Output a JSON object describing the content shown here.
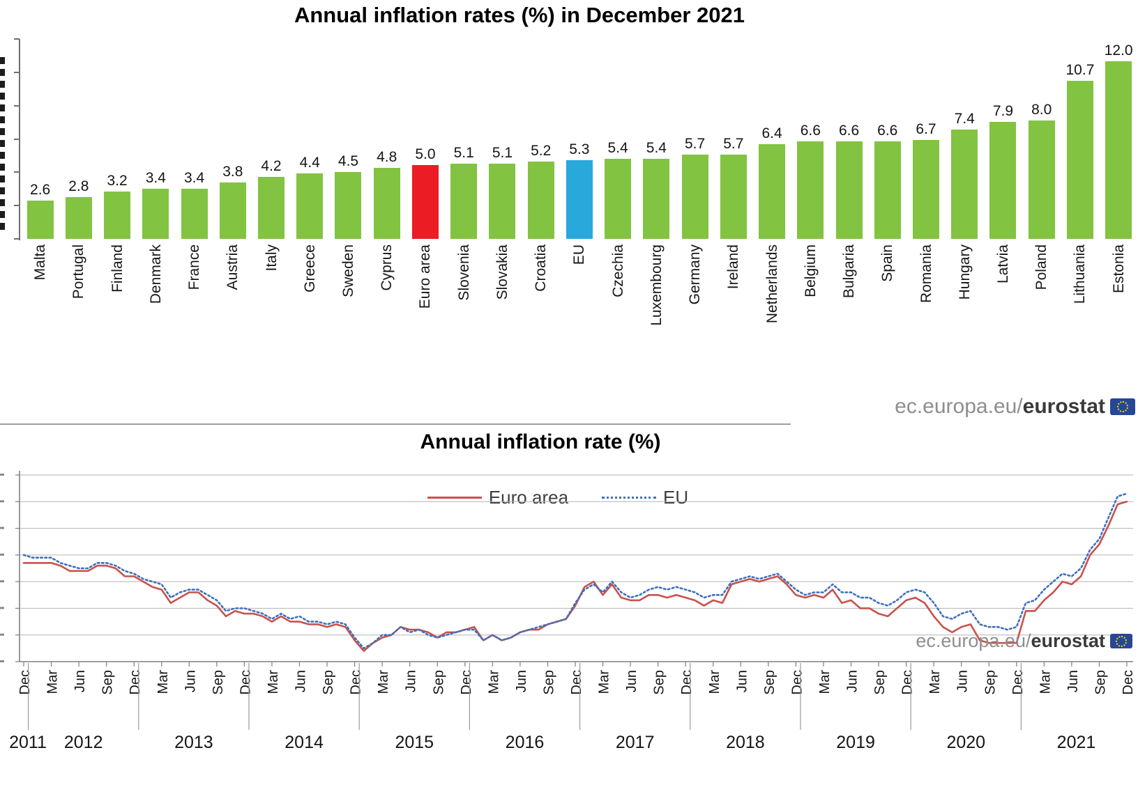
{
  "watermark": {
    "prefix": "ec.europa.eu/",
    "brand": "eurostat",
    "flag": "eu-flag"
  },
  "chart_data": [
    {
      "type": "bar",
      "title": "Annual inflation rates (%) in December 2021",
      "categories": [
        "Malta",
        "Portugal",
        "Finland",
        "Denmark",
        "France",
        "Austria",
        "Italy",
        "Greece",
        "Sweden",
        "Cyprus",
        "Euro area",
        "Slovenia",
        "Slovakia",
        "Croatia",
        "EU",
        "Czechia",
        "Luxembourg",
        "Germany",
        "Ireland",
        "Netherlands",
        "Belgium",
        "Bulgaria",
        "Spain",
        "Romania",
        "Hungary",
        "Latvia",
        "Poland",
        "Lithuania",
        "Estonia"
      ],
      "values": [
        2.6,
        2.8,
        3.2,
        3.4,
        3.4,
        3.8,
        4.2,
        4.4,
        4.5,
        4.8,
        5.0,
        5.1,
        5.1,
        5.2,
        5.3,
        5.4,
        5.4,
        5.7,
        5.7,
        6.4,
        6.6,
        6.6,
        6.6,
        6.7,
        7.4,
        7.9,
        8.0,
        10.7,
        12.0
      ],
      "ylim": [
        0,
        13.5
      ],
      "grid": false,
      "value_labels": "one_decimal",
      "bar_colors": {
        "default": "#82c341",
        "euro_area": "#ec1c24",
        "eu": "#29a8dc"
      },
      "highlight_red": "Euro area",
      "highlight_blue": "EU"
    },
    {
      "type": "line",
      "title": "Annual inflation rate (%)",
      "x_start": "Dec 2011",
      "x_end": "Dec 2021",
      "quarter_label_cycle": [
        "Dec",
        "Mar",
        "Jun",
        "Sep"
      ],
      "years": [
        "2011",
        "2012",
        "2013",
        "2014",
        "2015",
        "2016",
        "2017",
        "2018",
        "2019",
        "2020",
        "2021"
      ],
      "ylim": [
        -1,
        6
      ],
      "grid": true,
      "legend_position": "top-center",
      "series": [
        {
          "name": "Euro area",
          "color": "#c8524b",
          "style": "solid",
          "values": [
            2.7,
            2.7,
            2.7,
            2.7,
            2.6,
            2.4,
            2.4,
            2.4,
            2.6,
            2.6,
            2.5,
            2.2,
            2.2,
            2.0,
            1.8,
            1.7,
            1.2,
            1.4,
            1.6,
            1.6,
            1.3,
            1.1,
            0.7,
            0.9,
            0.8,
            0.8,
            0.7,
            0.5,
            0.7,
            0.5,
            0.5,
            0.4,
            0.4,
            0.3,
            0.4,
            0.3,
            -0.2,
            -0.6,
            -0.3,
            -0.1,
            0.0,
            0.3,
            0.2,
            0.2,
            0.1,
            -0.1,
            0.1,
            0.1,
            0.2,
            0.3,
            -0.2,
            0.0,
            -0.2,
            -0.1,
            0.1,
            0.2,
            0.2,
            0.4,
            0.5,
            0.6,
            1.1,
            1.8,
            2.0,
            1.5,
            1.9,
            1.4,
            1.3,
            1.3,
            1.5,
            1.5,
            1.4,
            1.5,
            1.4,
            1.3,
            1.1,
            1.3,
            1.2,
            1.9,
            2.0,
            2.1,
            2.0,
            2.1,
            2.2,
            1.9,
            1.5,
            1.4,
            1.5,
            1.4,
            1.7,
            1.2,
            1.3,
            1.0,
            1.0,
            0.8,
            0.7,
            1.0,
            1.3,
            1.4,
            1.2,
            0.7,
            0.3,
            0.1,
            0.3,
            0.4,
            -0.2,
            -0.3,
            -0.3,
            -0.3,
            -0.3,
            0.9,
            0.9,
            1.3,
            1.6,
            2.0,
            1.9,
            2.2,
            3.0,
            3.4,
            4.1,
            4.9,
            5.0
          ]
        },
        {
          "name": "EU",
          "color": "#3e6fbe",
          "style": "dotted",
          "values": [
            3.0,
            2.9,
            2.9,
            2.9,
            2.7,
            2.6,
            2.5,
            2.5,
            2.7,
            2.7,
            2.6,
            2.4,
            2.3,
            2.1,
            2.0,
            1.9,
            1.4,
            1.6,
            1.7,
            1.7,
            1.5,
            1.3,
            0.9,
            1.0,
            1.0,
            0.9,
            0.8,
            0.6,
            0.8,
            0.6,
            0.7,
            0.5,
            0.5,
            0.4,
            0.5,
            0.4,
            -0.1,
            -0.5,
            -0.3,
            0.0,
            0.0,
            0.3,
            0.1,
            0.2,
            0.0,
            -0.1,
            0.0,
            0.1,
            0.2,
            0.2,
            -0.2,
            0.0,
            -0.2,
            -0.1,
            0.1,
            0.2,
            0.3,
            0.4,
            0.5,
            0.6,
            1.2,
            1.7,
            1.9,
            1.6,
            2.0,
            1.6,
            1.4,
            1.5,
            1.7,
            1.8,
            1.7,
            1.8,
            1.7,
            1.6,
            1.4,
            1.5,
            1.5,
            2.0,
            2.1,
            2.2,
            2.1,
            2.2,
            2.3,
            2.0,
            1.7,
            1.5,
            1.6,
            1.6,
            1.9,
            1.6,
            1.6,
            1.4,
            1.4,
            1.2,
            1.1,
            1.3,
            1.6,
            1.7,
            1.6,
            1.2,
            0.7,
            0.6,
            0.8,
            0.9,
            0.4,
            0.3,
            0.3,
            0.2,
            0.3,
            1.2,
            1.3,
            1.7,
            2.0,
            2.3,
            2.2,
            2.5,
            3.2,
            3.6,
            4.4,
            5.2,
            5.3
          ]
        }
      ]
    }
  ]
}
